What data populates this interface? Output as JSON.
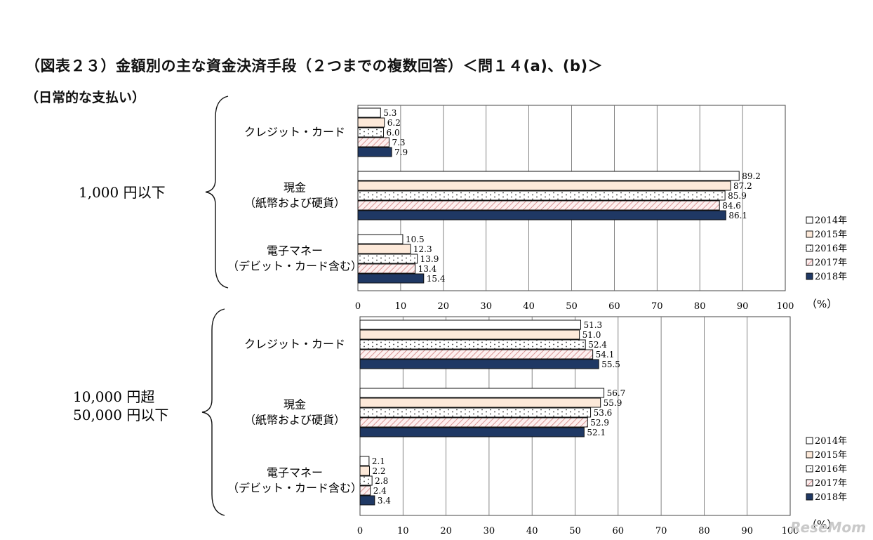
{
  "title": "（図表２３）金額別の主な資金決済手段（２つまでの複数回答）＜問１４(a)、(b)＞",
  "subtitle": "（日常的な支払い）",
  "watermark": "ReseMom",
  "legend": [
    "2014年",
    "2015年",
    "2016年",
    "2017年",
    "2018年"
  ],
  "unit": "（%）",
  "ticks": [
    0,
    10,
    20,
    30,
    40,
    50,
    60,
    70,
    80,
    90,
    100
  ],
  "chart_data": [
    {
      "type": "bar",
      "orientation": "horizontal",
      "group_label": [
        "1,000 円以下"
      ],
      "categories": [
        [
          "クレジット・カード"
        ],
        [
          "現金",
          "（紙幣および硬貨）"
        ],
        [
          "電子マネー",
          "（デビット・カード含む）"
        ]
      ],
      "series": [
        {
          "name": "2014年",
          "values": [
            5.3,
            89.2,
            10.5
          ]
        },
        {
          "name": "2015年",
          "values": [
            6.2,
            87.2,
            12.3
          ]
        },
        {
          "name": "2016年",
          "values": [
            6.0,
            85.9,
            13.9
          ]
        },
        {
          "name": "2017年",
          "values": [
            7.3,
            84.6,
            13.4
          ]
        },
        {
          "name": "2018年",
          "values": [
            7.9,
            86.1,
            15.4
          ]
        }
      ],
      "xlim": [
        0,
        100
      ],
      "xlabel": "（%）",
      "grid": true,
      "legend_position": "right"
    },
    {
      "type": "bar",
      "orientation": "horizontal",
      "group_label": [
        "10,000 円超",
        "50,000 円以下"
      ],
      "categories": [
        [
          "クレジット・カード"
        ],
        [
          "現金",
          "（紙幣および硬貨）"
        ],
        [
          "電子マネー",
          "（デビット・カード含む）"
        ]
      ],
      "series": [
        {
          "name": "2014年",
          "values": [
            51.3,
            56.7,
            2.1
          ]
        },
        {
          "name": "2015年",
          "values": [
            51.0,
            55.9,
            2.2
          ]
        },
        {
          "name": "2016年",
          "values": [
            52.4,
            53.6,
            2.8
          ]
        },
        {
          "name": "2017年",
          "values": [
            54.1,
            52.9,
            2.4
          ]
        },
        {
          "name": "2018年",
          "values": [
            55.5,
            52.1,
            3.4
          ]
        }
      ],
      "xlim": [
        0,
        100
      ],
      "xlabel": "（%）",
      "grid": true,
      "legend_position": "right"
    }
  ],
  "colors": {
    "s2014": "#ffffff",
    "s2015": "#fde9d9",
    "s2016": "#ffffff",
    "s2017": "#fce4e4",
    "s2018": "#1f3864",
    "hatch2017": "#d99594",
    "dots2016": "#333333",
    "grid": "#666666",
    "border": "#444444"
  }
}
